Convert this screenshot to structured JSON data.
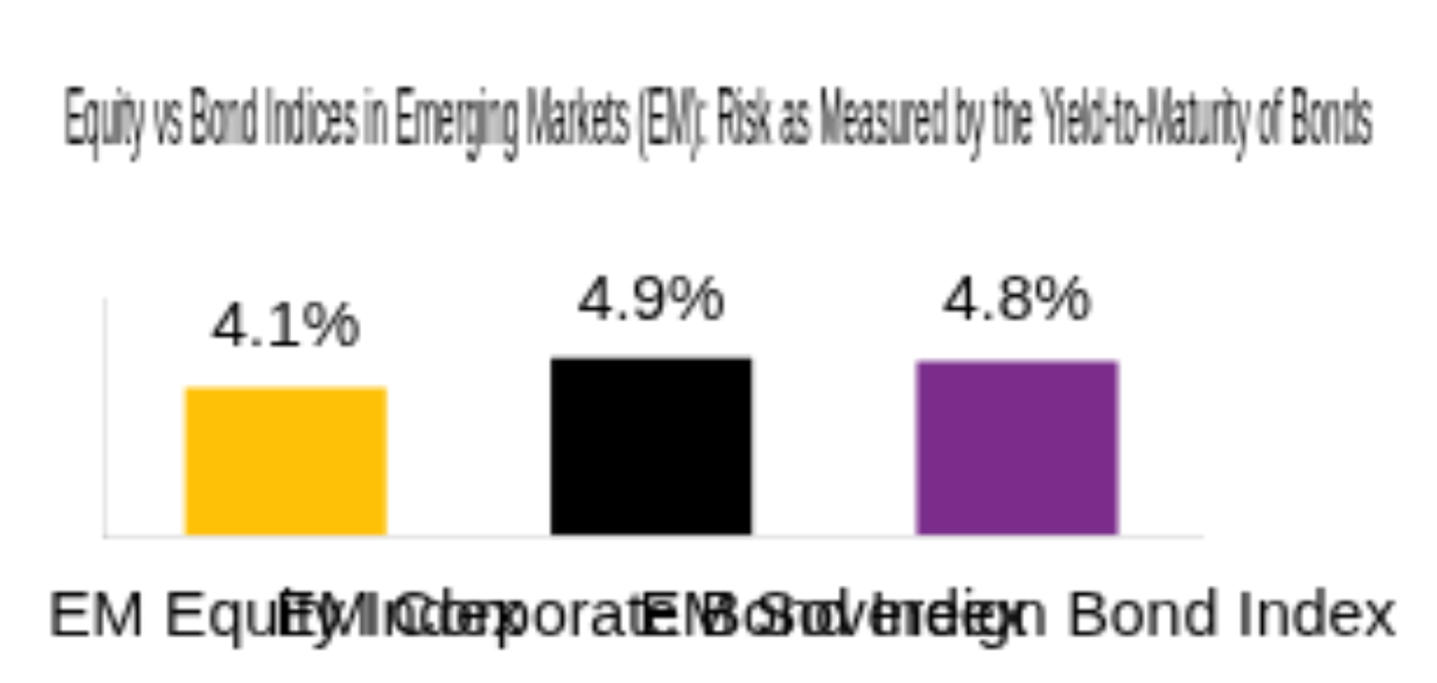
{
  "chart_data": {
    "type": "bar",
    "title": "Equity vs Bond Indices in Emerging Markets (EM): Risk as Measured by the Yield-to-Maturity of Bonds",
    "categories": [
      "EM Equity Index",
      "EM Corporate Bond Index",
      "EM Sovereign Bond Index"
    ],
    "values": [
      4.1,
      4.9,
      4.8
    ],
    "value_labels": [
      "4.1%",
      "4.9%",
      "4.8%"
    ],
    "colors": [
      "#FFC107",
      "#000000",
      "#7B2D8B"
    ],
    "ylim": [
      0,
      6.5
    ],
    "grid": false,
    "data_labels": true,
    "tick_labels": "x"
  }
}
